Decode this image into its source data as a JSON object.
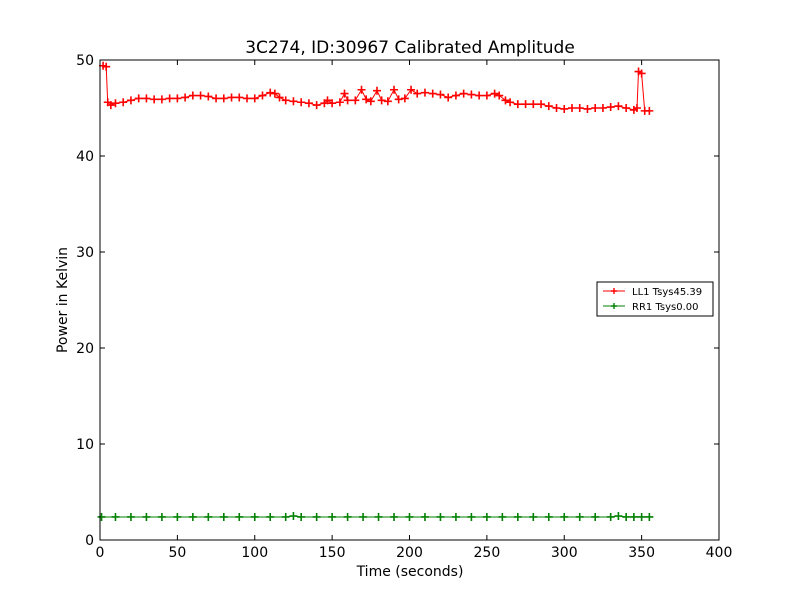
{
  "chart_data": {
    "type": "line",
    "title": "3C274, ID:30967 Calibrated Amplitude",
    "xlabel": "Time (seconds)",
    "ylabel": "Power in Kelvin",
    "xlim": [
      0,
      400
    ],
    "ylim": [
      0,
      50
    ],
    "xticks": [
      0,
      50,
      100,
      150,
      200,
      250,
      300,
      350,
      400
    ],
    "yticks": [
      0,
      10,
      20,
      30,
      40,
      50
    ],
    "grid": false,
    "legend_position": "right",
    "series": [
      {
        "name": "LL1 Tsys45.39",
        "color": "#ff0000",
        "marker": "+",
        "points": [
          [
            2,
            49.4
          ],
          [
            4,
            49.3
          ],
          [
            5,
            45.6
          ],
          [
            7,
            45.3
          ],
          [
            10,
            45.5
          ],
          [
            15,
            45.6
          ],
          [
            20,
            45.8
          ],
          [
            25,
            46.0
          ],
          [
            30,
            46.0
          ],
          [
            35,
            45.9
          ],
          [
            40,
            45.9
          ],
          [
            45,
            46.0
          ],
          [
            50,
            46.0
          ],
          [
            55,
            46.1
          ],
          [
            60,
            46.3
          ],
          [
            65,
            46.3
          ],
          [
            70,
            46.2
          ],
          [
            75,
            46.0
          ],
          [
            80,
            46.0
          ],
          [
            85,
            46.1
          ],
          [
            90,
            46.1
          ],
          [
            95,
            46.0
          ],
          [
            100,
            46.0
          ],
          [
            105,
            46.3
          ],
          [
            110,
            46.6
          ],
          [
            113,
            46.5
          ],
          [
            116,
            46.1
          ],
          [
            120,
            45.8
          ],
          [
            125,
            45.7
          ],
          [
            130,
            45.6
          ],
          [
            135,
            45.5
          ],
          [
            140,
            45.3
          ],
          [
            145,
            45.5
          ],
          [
            147,
            45.8
          ],
          [
            150,
            45.5
          ],
          [
            155,
            45.6
          ],
          [
            158,
            46.5
          ],
          [
            160,
            45.8
          ],
          [
            165,
            45.8
          ],
          [
            169,
            46.9
          ],
          [
            172,
            45.9
          ],
          [
            175,
            45.7
          ],
          [
            179,
            46.8
          ],
          [
            182,
            45.8
          ],
          [
            186,
            45.7
          ],
          [
            190,
            46.9
          ],
          [
            193,
            45.9
          ],
          [
            197,
            46.0
          ],
          [
            201,
            46.9
          ],
          [
            205,
            46.5
          ],
          [
            210,
            46.6
          ],
          [
            215,
            46.5
          ],
          [
            220,
            46.4
          ],
          [
            225,
            46.1
          ],
          [
            230,
            46.3
          ],
          [
            235,
            46.5
          ],
          [
            240,
            46.4
          ],
          [
            245,
            46.3
          ],
          [
            250,
            46.3
          ],
          [
            255,
            46.5
          ],
          [
            258,
            46.3
          ],
          [
            262,
            45.8
          ],
          [
            265,
            45.6
          ],
          [
            270,
            45.4
          ],
          [
            275,
            45.4
          ],
          [
            280,
            45.4
          ],
          [
            285,
            45.4
          ],
          [
            290,
            45.2
          ],
          [
            295,
            45.0
          ],
          [
            300,
            44.9
          ],
          [
            305,
            45.0
          ],
          [
            310,
            45.0
          ],
          [
            315,
            44.9
          ],
          [
            320,
            45.0
          ],
          [
            325,
            45.0
          ],
          [
            330,
            45.1
          ],
          [
            335,
            45.2
          ],
          [
            340,
            45.0
          ],
          [
            345,
            44.8
          ],
          [
            347,
            45.0
          ],
          [
            348,
            48.8
          ],
          [
            350,
            48.6
          ],
          [
            352,
            44.7
          ],
          [
            355,
            44.7
          ]
        ]
      },
      {
        "name": "RR1 Tsys0.00",
        "color": "#008000",
        "marker": "+",
        "points": [
          [
            1,
            2.4
          ],
          [
            10,
            2.4
          ],
          [
            20,
            2.4
          ],
          [
            30,
            2.4
          ],
          [
            40,
            2.4
          ],
          [
            50,
            2.4
          ],
          [
            60,
            2.4
          ],
          [
            70,
            2.4
          ],
          [
            80,
            2.4
          ],
          [
            90,
            2.4
          ],
          [
            100,
            2.4
          ],
          [
            110,
            2.4
          ],
          [
            120,
            2.4
          ],
          [
            125,
            2.5
          ],
          [
            130,
            2.4
          ],
          [
            140,
            2.4
          ],
          [
            150,
            2.4
          ],
          [
            160,
            2.4
          ],
          [
            170,
            2.4
          ],
          [
            180,
            2.4
          ],
          [
            190,
            2.4
          ],
          [
            200,
            2.4
          ],
          [
            210,
            2.4
          ],
          [
            220,
            2.4
          ],
          [
            230,
            2.4
          ],
          [
            240,
            2.4
          ],
          [
            250,
            2.4
          ],
          [
            260,
            2.4
          ],
          [
            270,
            2.4
          ],
          [
            280,
            2.4
          ],
          [
            290,
            2.4
          ],
          [
            300,
            2.4
          ],
          [
            310,
            2.4
          ],
          [
            320,
            2.4
          ],
          [
            330,
            2.4
          ],
          [
            335,
            2.5
          ],
          [
            340,
            2.4
          ],
          [
            345,
            2.4
          ],
          [
            350,
            2.4
          ],
          [
            355,
            2.4
          ]
        ]
      }
    ]
  }
}
